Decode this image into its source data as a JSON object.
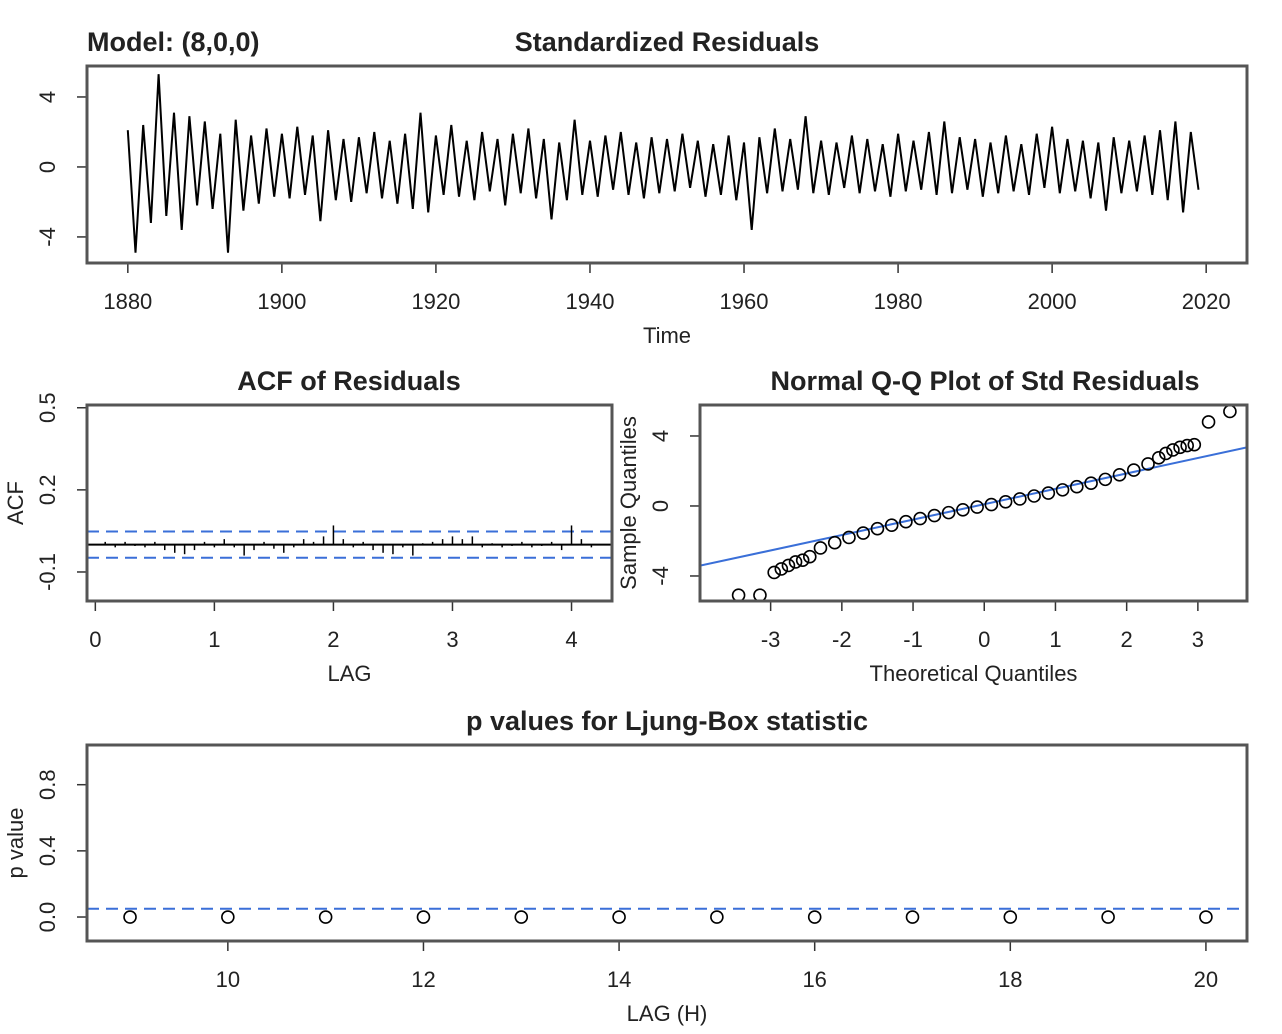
{
  "chart_data": [
    {
      "type": "line",
      "title": "Standardized Residuals",
      "annotation": "Model: (8,0,0)",
      "xlabel": "Time",
      "color": "#000000",
      "x": [
        1880,
        1881,
        1882,
        1883,
        1884,
        1885,
        1886,
        1887,
        1888,
        1889,
        1890,
        1891,
        1892,
        1893,
        1894,
        1895,
        1896,
        1897,
        1898,
        1899,
        1900,
        1901,
        1902,
        1903,
        1904,
        1905,
        1906,
        1907,
        1908,
        1909,
        1910,
        1911,
        1912,
        1913,
        1914,
        1915,
        1916,
        1917,
        1918,
        1919,
        1920,
        1921,
        1922,
        1923,
        1924,
        1925,
        1926,
        1927,
        1928,
        1929,
        1930,
        1931,
        1932,
        1933,
        1934,
        1935,
        1936,
        1937,
        1938,
        1939,
        1940,
        1941,
        1942,
        1943,
        1944,
        1945,
        1946,
        1947,
        1948,
        1949,
        1950,
        1951,
        1952,
        1953,
        1954,
        1955,
        1956,
        1957,
        1958,
        1959,
        1960,
        1961,
        1962,
        1963,
        1964,
        1965,
        1966,
        1967,
        1968,
        1969,
        1970,
        1971,
        1972,
        1973,
        1974,
        1975,
        1976,
        1977,
        1978,
        1979,
        1980,
        1981,
        1982,
        1983,
        1984,
        1985,
        1986,
        1987,
        1988,
        1989,
        1990,
        1991,
        1992,
        1993,
        1994,
        1995,
        1996,
        1997,
        1998,
        1999,
        2000,
        2001,
        2002,
        2003,
        2004,
        2005,
        2006,
        2007,
        2008,
        2009,
        2010,
        2011,
        2012,
        2013,
        2014,
        2015,
        2016,
        2017,
        2018,
        2019
      ],
      "values": [
        2.1,
        -4.9,
        2.4,
        -3.2,
        5.3,
        -2.8,
        3.1,
        -3.6,
        2.9,
        -2.2,
        2.6,
        -2.4,
        1.9,
        -4.9,
        2.7,
        -2.5,
        1.8,
        -2.1,
        2.2,
        -1.7,
        1.9,
        -1.8,
        2.3,
        -1.6,
        1.8,
        -3.1,
        2.1,
        -1.9,
        1.6,
        -2.0,
        1.7,
        -1.5,
        2.0,
        -1.8,
        1.5,
        -2.1,
        1.9,
        -2.4,
        3.1,
        -2.6,
        1.8,
        -1.6,
        2.4,
        -1.7,
        1.5,
        -1.9,
        2.0,
        -1.4,
        1.6,
        -2.2,
        1.9,
        -1.5,
        2.2,
        -1.8,
        1.6,
        -3.0,
        1.4,
        -1.9,
        2.7,
        -1.6,
        1.5,
        -1.7,
        1.8,
        -1.3,
        2.0,
        -1.6,
        1.4,
        -1.8,
        1.7,
        -1.5,
        1.6,
        -1.4,
        1.9,
        -1.2,
        1.5,
        -1.7,
        1.3,
        -1.6,
        1.8,
        -1.9,
        1.4,
        -3.6,
        1.7,
        -1.5,
        2.2,
        -1.4,
        1.6,
        -1.3,
        2.9,
        -1.5,
        1.5,
        -1.6,
        1.4,
        -1.2,
        1.8,
        -1.5,
        1.6,
        -1.4,
        1.3,
        -1.7,
        1.9,
        -1.4,
        1.5,
        -1.3,
        2.0,
        -1.6,
        2.6,
        -1.5,
        1.7,
        -1.3,
        1.6,
        -1.7,
        1.4,
        -1.5,
        1.8,
        -1.4,
        1.3,
        -1.6,
        1.9,
        -1.2,
        2.3,
        -1.5,
        1.6,
        -1.4,
        1.5,
        -1.8,
        1.4,
        -2.5,
        1.7,
        -1.5,
        1.5,
        -1.4,
        1.8,
        -1.6,
        2.1,
        -1.9,
        2.6,
        -2.6,
        2.0,
        -1.3
      ],
      "xlim": [
        1874.7,
        2025.3
      ],
      "xticks": [
        1880,
        1900,
        1920,
        1940,
        1960,
        1980,
        2000,
        2020
      ],
      "ylim": [
        -5.49,
        5.77
      ],
      "yticks": [
        -4,
        0,
        4
      ]
    },
    {
      "type": "stem",
      "title": "ACF of Residuals",
      "xlabel": "LAG",
      "ylabel": "ACF",
      "color": "#000000",
      "x": [
        0.083,
        0.167,
        0.25,
        0.333,
        0.417,
        0.5,
        0.583,
        0.667,
        0.75,
        0.833,
        0.917,
        1.0,
        1.083,
        1.167,
        1.25,
        1.333,
        1.417,
        1.5,
        1.583,
        1.667,
        1.75,
        1.833,
        1.917,
        2.0,
        2.083,
        2.167,
        2.25,
        2.333,
        2.417,
        2.5,
        2.583,
        2.667,
        2.75,
        2.833,
        2.917,
        3.0,
        3.083,
        3.167,
        3.25,
        3.333,
        3.417,
        3.5,
        3.583,
        3.667,
        3.75,
        3.833,
        3.917,
        4.0,
        4.083,
        4.167
      ],
      "values": [
        0.01,
        -0.01,
        0.01,
        -0.005,
        -0.01,
        0.01,
        -0.02,
        -0.03,
        -0.035,
        -0.02,
        0.01,
        -0.01,
        0.02,
        -0.01,
        -0.04,
        -0.02,
        0.01,
        -0.015,
        -0.03,
        -0.01,
        0.02,
        0.01,
        0.03,
        0.07,
        0.02,
        -0.01,
        0.01,
        -0.02,
        -0.03,
        -0.035,
        -0.01,
        -0.04,
        0.005,
        0.01,
        0.02,
        0.03,
        0.02,
        0.03,
        -0.01,
        0.005,
        -0.01,
        -0.005,
        0.01,
        -0.01,
        -0.005,
        0.01,
        -0.02,
        0.07,
        0.02,
        -0.01
      ],
      "hlines": [
        0.048,
        -0.048
      ],
      "hline_color": "#3a6fd8",
      "xlim": [
        -0.07,
        4.34
      ],
      "xticks": [
        0,
        1,
        2,
        3,
        4
      ],
      "ylim": [
        -0.206,
        0.51
      ],
      "yticks": [
        -0.1,
        0.2,
        0.5
      ]
    },
    {
      "type": "scatter",
      "title": "Normal Q-Q Plot of Std Residuals",
      "xlabel": "Theoretical Quantiles",
      "ylabel": "Sample Quantiles",
      "color": "#000000",
      "x": [
        -3.45,
        -3.15,
        -2.95,
        -2.85,
        -2.75,
        -2.65,
        -2.55,
        -2.45,
        -2.3,
        -2.1,
        -1.9,
        -1.7,
        -1.5,
        -1.3,
        -1.1,
        -0.9,
        -0.7,
        -0.5,
        -0.3,
        -0.1,
        0.1,
        0.3,
        0.5,
        0.7,
        0.9,
        1.1,
        1.3,
        1.5,
        1.7,
        1.9,
        2.1,
        2.3,
        2.45,
        2.55,
        2.65,
        2.75,
        2.85,
        2.95,
        3.15,
        3.45
      ],
      "values": [
        -5.1,
        -5.1,
        -3.8,
        -3.6,
        -3.4,
        -3.2,
        -3.1,
        -2.9,
        -2.4,
        -2.1,
        -1.8,
        -1.55,
        -1.3,
        -1.1,
        -0.9,
        -0.72,
        -0.55,
        -0.38,
        -0.22,
        -0.06,
        0.08,
        0.24,
        0.4,
        0.57,
        0.74,
        0.92,
        1.1,
        1.3,
        1.52,
        1.78,
        2.05,
        2.4,
        2.75,
        3.0,
        3.2,
        3.35,
        3.45,
        3.5,
        4.8,
        5.4
      ],
      "reference_line": {
        "intercept": 0.1,
        "slope": 0.88,
        "color": "#3a6fd8"
      },
      "xlim": [
        -3.992,
        3.69
      ],
      "xticks": [
        -3,
        -2,
        -1,
        0,
        1,
        2,
        3
      ],
      "ylim": [
        -5.43,
        5.77
      ],
      "yticks": [
        -4,
        0,
        4
      ]
    },
    {
      "type": "scatter",
      "title": "p values for Ljung-Box statistic",
      "xlabel": "LAG (H)",
      "ylabel": "p value",
      "color": "#000000",
      "x": [
        9,
        10,
        11,
        12,
        13,
        14,
        15,
        16,
        17,
        18,
        19,
        20
      ],
      "values": [
        0,
        0,
        0,
        0,
        0,
        0,
        0,
        0,
        0,
        0,
        0,
        0
      ],
      "hlines": [
        0.05
      ],
      "hline_color": "#3a6fd8",
      "xlim": [
        8.56,
        20.42
      ],
      "xticks": [
        10,
        12,
        14,
        16,
        18,
        20
      ],
      "ylim": [
        -0.145,
        1.04
      ],
      "yticks": [
        {
          "value": 0,
          "label": "0.0"
        },
        0.4,
        0.8
      ]
    }
  ]
}
